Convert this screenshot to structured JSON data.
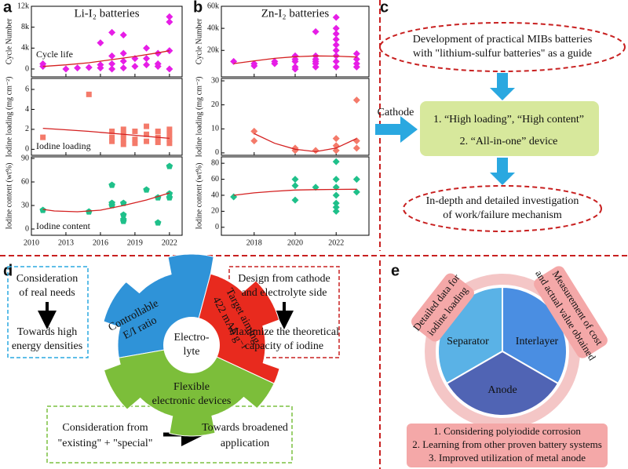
{
  "panel_labels": [
    "a",
    "b",
    "c",
    "d",
    "e"
  ],
  "chart_data": [
    {
      "type": "scatter",
      "title": "Li-I₂ batteries",
      "ylabel": "Cycle Number",
      "annotation": "Cycle life",
      "xlim": [
        2010,
        2023.1
      ],
      "ylim": [
        -1500,
        12000
      ],
      "yticks": [
        0,
        {
          "value": 4000,
          "label": "4k"
        },
        {
          "value": 8000,
          "label": "8k"
        },
        {
          "value": 12000,
          "label": "12k"
        }
      ],
      "marker": "diamond",
      "color": "#e61ee6",
      "x": [
        2011,
        2011,
        2013,
        2014,
        2015,
        2016,
        2016,
        2016,
        2017,
        2017,
        2017,
        2017,
        2018,
        2018,
        2018,
        2018,
        2019,
        2019,
        2020,
        2020,
        2020,
        2021,
        2021,
        2021,
        2022,
        2022,
        2022,
        2022
      ],
      "values": [
        1000,
        500,
        0,
        200,
        300,
        5000,
        800,
        200,
        7000,
        2500,
        1000,
        0,
        6500,
        3000,
        1500,
        200,
        2000,
        500,
        4000,
        2000,
        800,
        3000,
        1000,
        500,
        10000,
        9000,
        3500,
        0
      ],
      "fit": {
        "color": "#d42020",
        "x": [
          2011,
          2013,
          2015,
          2017,
          2019,
          2021,
          2022
        ],
        "values": [
          500,
          800,
          1200,
          1800,
          2400,
          3100,
          3500
        ]
      }
    },
    {
      "type": "scatter",
      "ylabel": "Iodine loading (mg cm⁻²)",
      "annotation": "Iodine loading",
      "xlim": [
        2010,
        2023.1
      ],
      "ylim": [
        -0.6,
        7.1
      ],
      "yticks": [
        0,
        2,
        4,
        6
      ],
      "marker": "square",
      "color": "#f47a6a",
      "x": [
        2011,
        2015,
        2017,
        2017,
        2017,
        2018,
        2018,
        2018,
        2018,
        2019,
        2019,
        2019,
        2020,
        2020,
        2020,
        2021,
        2021,
        2021,
        2022,
        2022,
        2022,
        2022
      ],
      "values": [
        1.2,
        5.5,
        1.8,
        1.2,
        0.8,
        2,
        1.5,
        1,
        0.5,
        1.8,
        1,
        0.6,
        2.3,
        1.5,
        0.8,
        1.8,
        1.2,
        0.7,
        2,
        1.5,
        1,
        0.6
      ],
      "fit": {
        "color": "#d42020",
        "x": [
          2011,
          2013,
          2015,
          2017,
          2019,
          2021,
          2022
        ],
        "values": [
          2.1,
          1.95,
          1.8,
          1.6,
          1.4,
          1.2,
          1.1
        ]
      }
    },
    {
      "type": "scatter",
      "ylabel": "Iodine content (wt%)",
      "annotation": "Iodine content",
      "xlim": [
        2010,
        2023.1
      ],
      "ylim": [
        -8,
        92
      ],
      "yticks": [
        0,
        30,
        60,
        90
      ],
      "xticks": [
        2010,
        2013,
        2016,
        2019,
        2022
      ],
      "marker": "pentagon",
      "color": "#1fc08a",
      "x": [
        2011,
        2015,
        2017,
        2017,
        2017,
        2018,
        2018,
        2018,
        2018,
        2020,
        2021,
        2021,
        2022,
        2022,
        2022
      ],
      "values": [
        24,
        22,
        56,
        33,
        30,
        33,
        18,
        12,
        10,
        50,
        40,
        8,
        80,
        45,
        40
      ],
      "fit": {
        "color": "#d42020",
        "x": [
          2011,
          2012,
          2014,
          2016,
          2018,
          2020,
          2022
        ],
        "values": [
          25,
          23,
          22,
          24,
          30,
          37,
          46
        ]
      }
    },
    {
      "type": "scatter",
      "title": "Zn-I₂ batteries",
      "ylabel": "Cycle Number",
      "xlim": [
        2016.4,
        2023.6
      ],
      "ylim": [
        -4000,
        60000
      ],
      "yticks": [
        {
          "value": 20000,
          "label": "20k"
        },
        {
          "value": 40000,
          "label": "40k"
        },
        {
          "value": 60000,
          "label": "60k"
        }
      ],
      "marker": "diamond",
      "color": "#e61ee6",
      "x": [
        2017,
        2018,
        2018,
        2019,
        2019,
        2020,
        2020,
        2020,
        2020,
        2020,
        2021,
        2021,
        2021,
        2021,
        2021,
        2021,
        2022,
        2022,
        2022,
        2022,
        2022,
        2022,
        2022,
        2022,
        2022,
        2023,
        2023,
        2023,
        2023
      ],
      "values": [
        10000,
        8000,
        6000,
        10000,
        8000,
        15000,
        12000,
        10000,
        5000,
        3000,
        37000,
        15000,
        12000,
        10000,
        8000,
        5000,
        50000,
        40000,
        35000,
        30000,
        25000,
        20000,
        15000,
        10000,
        5000,
        17000,
        12000,
        8000,
        5000
      ],
      "fit": {
        "color": "#d42020",
        "x": [
          2017,
          2018,
          2019,
          2020,
          2021,
          2022,
          2023
        ],
        "values": [
          8000,
          10500,
          12800,
          14300,
          15000,
          14800,
          14000
        ]
      }
    },
    {
      "type": "scatter",
      "ylabel": "Iodine loading (mg cm⁻²)",
      "xlim": [
        2016.4,
        2023.6
      ],
      "ylim": [
        -1,
        31
      ],
      "yticks": [
        0,
        10,
        20,
        30
      ],
      "marker": "diamond",
      "color": "#f47a6a",
      "x": [
        2018,
        2018,
        2020,
        2020,
        2021,
        2022,
        2022,
        2022,
        2023,
        2023,
        2023
      ],
      "values": [
        9,
        5,
        2,
        1,
        1,
        6,
        3,
        1,
        22,
        5,
        2
      ],
      "fit": {
        "color": "#d42020",
        "x": [
          2018,
          2019,
          2020,
          2021,
          2022,
          2023
        ],
        "values": [
          8,
          4,
          1.5,
          0.5,
          2,
          6
        ]
      }
    },
    {
      "type": "scatter",
      "ylabel": "Iodine content (wt%)",
      "xlim": [
        2016.4,
        2023.6
      ],
      "ylim": [
        -10,
        88
      ],
      "yticks": [
        0,
        20,
        40,
        60,
        80
      ],
      "xticks": [
        2018,
        2020,
        2022
      ],
      "marker": "diamond",
      "color": "#1fc08a",
      "x": [
        2017,
        2020,
        2020,
        2020,
        2021,
        2022,
        2022,
        2022,
        2022,
        2022,
        2022,
        2022,
        2023,
        2023
      ],
      "values": [
        38,
        60,
        52,
        34,
        50,
        82,
        60,
        50,
        40,
        30,
        25,
        20,
        60,
        44
      ],
      "fit": {
        "color": "#d42020",
        "x": [
          2017,
          2018,
          2019,
          2020,
          2021,
          2022,
          2023
        ],
        "values": [
          40,
          43,
          45,
          46.5,
          47,
          47.3,
          47.5
        ]
      }
    }
  ],
  "diagram_c": {
    "top": [
      "Development of practical MIBs batteries",
      "with \"lithium-sulfur batteries\" as a guide"
    ],
    "cathode": "Cathode",
    "box": [
      "1. “High loading”, “High content”",
      "2. “All-in-one” device"
    ],
    "bottom": [
      "In-depth and detailed investigation",
      "of work/failure mechanism"
    ]
  },
  "diagram_d": {
    "left_top": [
      "Consideration",
      "of real needs"
    ],
    "left_bottom": [
      "Towards high",
      "energy densities"
    ],
    "right_top": [
      "Design from cathode",
      "and electrolyte side"
    ],
    "right_bottom": [
      "Maximize the theoretical",
      "capacity of iodine"
    ],
    "blue": [
      "Controllable",
      "E/I ratio"
    ],
    "red": [
      "Target aiming",
      "422 mAh g⁻¹"
    ],
    "green": [
      "Flexible",
      "electronic devices"
    ],
    "center": [
      "Electro-",
      "lyte"
    ],
    "bottom_left": [
      "Consideration  from",
      "\"existing\" + \"special\""
    ],
    "bottom_right": [
      "Towards broadened",
      "application"
    ]
  },
  "diagram_e": {
    "left": [
      "Detailed data for",
      "iodine loading"
    ],
    "right": [
      "Measurement of cost",
      "and actual value obtained"
    ],
    "sectors": [
      "Separator",
      "Interlayer",
      "Anode"
    ],
    "list": [
      "1. Considering polyiodide corrosion",
      "2. Learning from other proven battery systems",
      "3. Improved utilization of metal anode"
    ]
  }
}
